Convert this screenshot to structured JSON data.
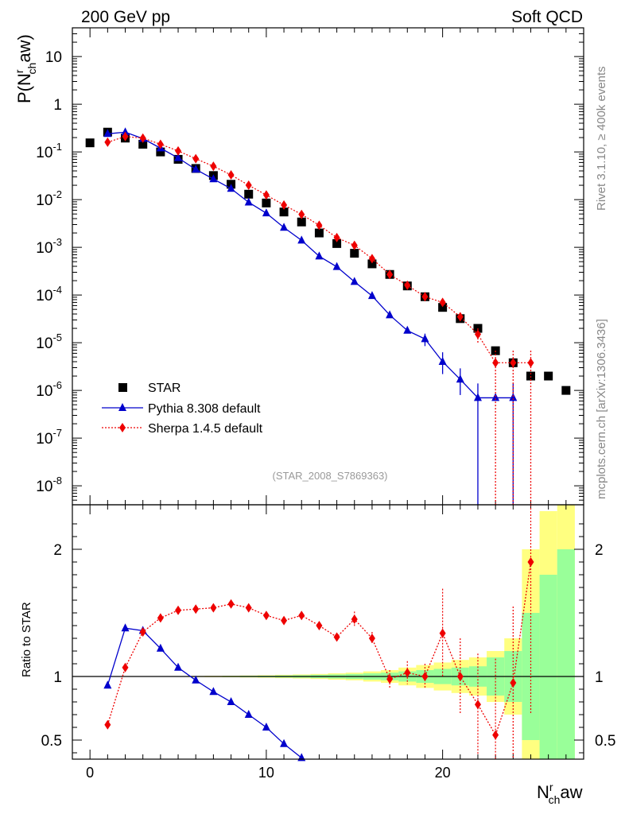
{
  "header": {
    "left": "200 GeV pp",
    "right": "Soft QCD"
  },
  "side_labels": {
    "rivet": "Rivet 3.1.10, ≥ 400k events",
    "mcplots": "mcplots.cern.ch [arXiv:1306.3436]"
  },
  "colors": {
    "star": "#000000",
    "pythia": "#0000cc",
    "sherpa": "#ee0000",
    "band_yellow": "#ffff80",
    "band_green": "#99ff99"
  },
  "chart_data": [
    {
      "type": "scatter",
      "name": "main",
      "title": "(STAR_2008_S7869363)",
      "ylabel_main": "P(N",
      "ylabel_sup": "r",
      "ylabel_sub": "ch",
      "ylabel_tail": "aw)",
      "yscale": "log",
      "ylim": [
        4e-09,
        40
      ],
      "xlim": [
        -1,
        28
      ],
      "yticks": [
        {
          "v": 1e-08,
          "base": "10",
          "exp": "-8"
        },
        {
          "v": 1e-07,
          "base": "10",
          "exp": "-7"
        },
        {
          "v": 1e-06,
          "base": "10",
          "exp": "-6"
        },
        {
          "v": 1e-05,
          "base": "10",
          "exp": "-5"
        },
        {
          "v": 0.0001,
          "base": "10",
          "exp": "-4"
        },
        {
          "v": 0.001,
          "base": "10",
          "exp": "-3"
        },
        {
          "v": 0.01,
          "base": "10",
          "exp": "-2"
        },
        {
          "v": 0.1,
          "base": "10",
          "exp": "-1"
        },
        {
          "v": 1,
          "base": "1",
          "exp": ""
        },
        {
          "v": 10,
          "base": "10",
          "exp": ""
        }
      ],
      "legend": {
        "position": "bottom-left",
        "entries": [
          {
            "key": "star",
            "label": "STAR"
          },
          {
            "key": "pythia",
            "label": "Pythia 8.308 default"
          },
          {
            "key": "sherpa",
            "label": "Sherpa 1.4.5 default"
          }
        ]
      },
      "series": [
        {
          "key": "star",
          "name": "STAR",
          "marker": "square",
          "x": [
            0,
            1,
            2,
            3,
            4,
            5,
            6,
            7,
            8,
            9,
            10,
            11,
            12,
            13,
            14,
            15,
            16,
            17,
            18,
            19,
            20,
            21,
            22,
            23,
            24,
            25,
            26,
            27
          ],
          "y": [
            0.155,
            0.26,
            0.195,
            0.145,
            0.1,
            0.07,
            0.045,
            0.032,
            0.021,
            0.013,
            0.0085,
            0.0055,
            0.0034,
            0.002,
            0.0012,
            0.00075,
            0.00045,
            0.00027,
            0.000155,
            9.2e-05,
            5.5e-05,
            3.2e-05,
            2e-05,
            6.8e-06,
            3.8e-06,
            2e-06,
            2e-06,
            1e-06
          ]
        },
        {
          "key": "pythia",
          "name": "Pythia 8.308 default",
          "marker": "triangle",
          "x": [
            1,
            2,
            3,
            4,
            5,
            6,
            7,
            8,
            9,
            10,
            11,
            12,
            13,
            14,
            15,
            16,
            17,
            18,
            19,
            20,
            21,
            22,
            23,
            24
          ],
          "y": [
            0.24,
            0.26,
            0.19,
            0.12,
            0.075,
            0.043,
            0.027,
            0.017,
            0.0088,
            0.0052,
            0.0026,
            0.0014,
            0.00065,
            0.00039,
            0.00019,
            9.6e-05,
            3.8e-05,
            1.8e-05,
            1.2e-05,
            4e-06,
            1.7e-06,
            7e-07,
            7e-07,
            7e-07
          ],
          "yerr_lo": [
            0,
            0,
            0,
            0,
            0,
            0,
            0,
            0,
            0,
            0,
            0,
            0,
            0,
            0,
            0,
            0,
            0,
            0,
            3.5e-06,
            1.8e-06,
            9e-07,
            7e-07,
            0,
            7e-07
          ],
          "yerr_hi": [
            0,
            0,
            0,
            0,
            0,
            0,
            0,
            0,
            0,
            0,
            0,
            0,
            0,
            0,
            0,
            0,
            0,
            0,
            3.5e-06,
            2.3e-06,
            1.2e-06,
            7e-07,
            0,
            7e-07
          ]
        },
        {
          "key": "sherpa",
          "name": "Sherpa 1.4.5 default",
          "marker": "diamond",
          "x": [
            1,
            2,
            3,
            4,
            5,
            6,
            7,
            8,
            9,
            10,
            11,
            12,
            13,
            14,
            15,
            16,
            17,
            18,
            19,
            20,
            21,
            22,
            23,
            24,
            25
          ],
          "y": [
            0.16,
            0.21,
            0.195,
            0.145,
            0.105,
            0.072,
            0.05,
            0.033,
            0.02,
            0.0125,
            0.0077,
            0.0049,
            0.0029,
            0.0016,
            0.0011,
            0.00058,
            0.00027,
            0.00016,
            9.2e-05,
            7e-05,
            3.5e-05,
            1.5e-05,
            3.8e-06,
            3.8e-06,
            3.8e-06
          ],
          "yerr_lo": [
            0,
            0,
            0,
            0,
            0,
            0,
            0,
            0,
            0,
            0,
            0,
            0,
            0,
            0,
            0,
            0,
            0,
            0,
            1.2e-05,
            1.2e-05,
            8e-06,
            5e-06,
            3.8e-06,
            3.8e-06,
            3.8e-06
          ],
          "yerr_hi": [
            0,
            0,
            0,
            0,
            0,
            0,
            0,
            0,
            0,
            0,
            0,
            0,
            0,
            0,
            0,
            0,
            0,
            0,
            1.2e-05,
            1.2e-05,
            8e-06,
            5e-06,
            3e-06,
            3e-06,
            3e-06
          ]
        }
      ]
    },
    {
      "type": "line",
      "name": "ratio",
      "ylabel": "Ratio to STAR",
      "xlabel_main": "N",
      "xlabel_sup": "r",
      "xlabel_sub": "ch",
      "xlabel_tail": "aw",
      "ylim": [
        0.35,
        2.35
      ],
      "xlim": [
        -1,
        28
      ],
      "xticks": [
        0,
        10,
        20
      ],
      "yticks": [
        0.5,
        1,
        2
      ],
      "yticks_labels": [
        "0.5",
        "1",
        "2"
      ],
      "bands": {
        "x": [
          0,
          1,
          2,
          3,
          4,
          5,
          6,
          7,
          8,
          9,
          10,
          11,
          12,
          13,
          14,
          15,
          16,
          17,
          18,
          19,
          20,
          21,
          22,
          23,
          24,
          25,
          26,
          27
        ],
        "yellow": [
          0.002,
          0.002,
          0.002,
          0.002,
          0.002,
          0.003,
          0.004,
          0.005,
          0.006,
          0.008,
          0.01,
          0.013,
          0.016,
          0.02,
          0.025,
          0.03,
          0.04,
          0.05,
          0.07,
          0.09,
          0.11,
          0.13,
          0.15,
          0.2,
          0.3,
          1.0,
          1.3,
          1.6
        ],
        "green": [
          0.001,
          0.001,
          0.001,
          0.001,
          0.001,
          0.002,
          0.002,
          0.003,
          0.004,
          0.005,
          0.006,
          0.008,
          0.01,
          0.013,
          0.016,
          0.02,
          0.025,
          0.03,
          0.04,
          0.05,
          0.06,
          0.07,
          0.08,
          0.15,
          0.2,
          0.5,
          0.8,
          1.0
        ]
      },
      "series": [
        {
          "key": "pythia",
          "name": "Pythia 8.308 default",
          "marker": "triangle",
          "x": [
            1,
            2,
            3,
            4,
            5,
            6,
            7,
            8,
            9,
            10,
            11,
            12
          ],
          "y": [
            0.93,
            1.38,
            1.36,
            1.22,
            1.07,
            0.97,
            0.88,
            0.8,
            0.7,
            0.6,
            0.47,
            0.36
          ]
        },
        {
          "key": "sherpa",
          "name": "Sherpa 1.4.5 default",
          "marker": "diamond",
          "x": [
            1,
            2,
            3,
            4,
            5,
            6,
            7,
            8,
            9,
            10,
            11,
            12,
            13,
            14,
            15,
            16,
            17,
            18,
            19,
            20,
            21,
            22,
            23,
            24,
            25
          ],
          "y": [
            0.62,
            1.07,
            1.35,
            1.46,
            1.52,
            1.53,
            1.54,
            1.57,
            1.54,
            1.48,
            1.44,
            1.48,
            1.4,
            1.31,
            1.45,
            1.3,
            0.98,
            1.03,
            1.0,
            1.34,
            1.0,
            0.78,
            0.54,
            0.95,
            1.9
          ],
          "yerr": [
            0,
            0,
            0,
            0,
            0,
            0,
            0,
            0,
            0,
            0,
            0,
            0,
            0,
            0,
            0.06,
            0.05,
            0.07,
            0.09,
            0.1,
            0.35,
            0.3,
            0.4,
            0.6,
            0.6,
            1.2
          ]
        }
      ]
    }
  ]
}
